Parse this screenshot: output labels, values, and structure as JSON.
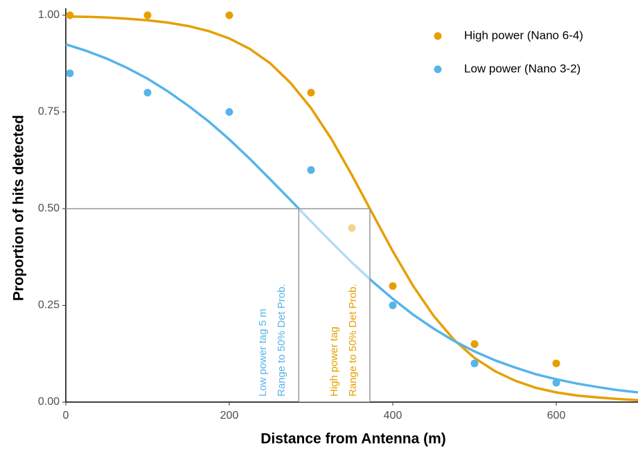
{
  "chart_data": {
    "type": "scatter",
    "xlabel": "Distance from Antenna (m)",
    "ylabel": "Proportion of hits detected",
    "xlim": [
      0,
      700
    ],
    "ylim": [
      0,
      1
    ],
    "xticks": [
      0,
      200,
      400,
      600
    ],
    "yticks": [
      {
        "value": 0,
        "label": "0.00"
      },
      {
        "value": 0.25,
        "label": "0.25"
      },
      {
        "value": 0.5,
        "label": "0.50"
      },
      {
        "value": 0.75,
        "label": "0.75"
      },
      {
        "value": 1,
        "label": "1.00"
      }
    ],
    "legend": "top-right",
    "fit_x": [
      0,
      25,
      50,
      75,
      100,
      125,
      150,
      175,
      200,
      225,
      250,
      275,
      300,
      325,
      350,
      375,
      400,
      425,
      450,
      475,
      500,
      525,
      550,
      575,
      600,
      625,
      650,
      675,
      700
    ],
    "series": [
      {
        "name": "High power (Nano 6-4)",
        "color": "#E69F00",
        "x": [
          5,
          100,
          200,
          300,
          350,
          400,
          500,
          600
        ],
        "values": [
          1,
          1,
          1,
          0.8,
          0.45,
          0.3,
          0.15,
          0.1
        ],
        "fit": [
          0.997,
          0.996,
          0.994,
          0.991,
          0.987,
          0.981,
          0.972,
          0.959,
          0.94,
          0.913,
          0.876,
          0.825,
          0.76,
          0.68,
          0.587,
          0.488,
          0.39,
          0.3,
          0.223,
          0.161,
          0.114,
          0.08,
          0.055,
          0.037,
          0.025,
          0.017,
          0.012,
          0.008,
          0.005
        ]
      },
      {
        "name": "Low power (Nano 3-2)",
        "color": "#56B4E9",
        "x": [
          5,
          100,
          200,
          300,
          400,
          500,
          600
        ],
        "values": [
          0.85,
          0.8,
          0.75,
          0.6,
          0.25,
          0.1,
          0.05
        ],
        "fit": [
          0.925,
          0.908,
          0.888,
          0.864,
          0.836,
          0.803,
          0.766,
          0.725,
          0.679,
          0.629,
          0.576,
          0.522,
          0.467,
          0.413,
          0.361,
          0.312,
          0.267,
          0.226,
          0.19,
          0.158,
          0.131,
          0.108,
          0.089,
          0.072,
          0.059,
          0.048,
          0.039,
          0.031,
          0.025
        ]
      }
    ],
    "reference_lines": {
      "y": 0.5,
      "x": [
        285,
        372
      ]
    },
    "annotations": [
      {
        "lines": [
          "Low power tag 5 m",
          "Range to 50% Det Prob."
        ],
        "color": "#56B4E9"
      },
      {
        "lines": [
          "High power tag",
          "Range to 50% Det Prob."
        ],
        "color": "#E69F00"
      }
    ]
  }
}
